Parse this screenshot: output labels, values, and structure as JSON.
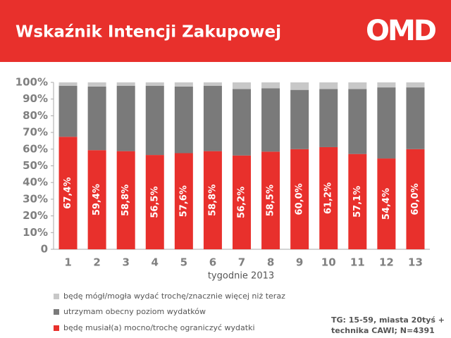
{
  "chart_data": {
    "type": "stacked_bar",
    "title": "Wskaźnik Intencji Zakupowej",
    "logo": "OMD",
    "x_label": "tygodnie 2013",
    "note": [
      "TG: 15-59, miasta 20tyś +",
      "technika CAWI; N=4391"
    ],
    "categories": [
      "1",
      "2",
      "3",
      "4",
      "5",
      "6",
      "7",
      "8",
      "9",
      "10",
      "11",
      "12",
      "13"
    ],
    "series": [
      {
        "name": "będę musiał(a) mocno/trochę ograniczyć wydatki",
        "color": "#e8302c",
        "values": [
          67.4,
          59.4,
          58.8,
          56.5,
          57.6,
          58.8,
          56.2,
          58.5,
          60.0,
          61.2,
          57.1,
          54.4,
          60.0
        ],
        "value_labels": [
          "67,4%",
          "59,4%",
          "58,8%",
          "56,5%",
          "57,6%",
          "58,8%",
          "56,2%",
          "58,5%",
          "60,0%",
          "61,2%",
          "57,1%",
          "54,4%",
          "60,0%"
        ]
      },
      {
        "name": "utrzymam obecny poziom wydatków",
        "color": "#7a7a7a",
        "values": [
          30.6,
          38.1,
          39.2,
          41.5,
          39.9,
          39.2,
          39.8,
          38.0,
          35.5,
          34.8,
          38.9,
          42.6,
          37.0
        ]
      },
      {
        "name": "będę mógł/mogła wydać trochę/znacznie więcej niż teraz",
        "color": "#c8c8c8",
        "values": [
          2.0,
          2.5,
          2.0,
          2.0,
          2.5,
          2.0,
          4.0,
          3.5,
          4.5,
          4.0,
          4.0,
          3.0,
          3.0
        ]
      }
    ],
    "ylim": [
      0,
      100
    ],
    "yticks": [
      0,
      {
        "value": 10,
        "label": "10%"
      },
      {
        "value": 20,
        "label": "20%"
      },
      {
        "value": 30,
        "label": "30%"
      },
      {
        "value": 40,
        "label": "40%"
      },
      {
        "value": 50,
        "label": "50%"
      },
      {
        "value": 60,
        "label": "60%"
      },
      {
        "value": 70,
        "label": "70%"
      },
      {
        "value": 80,
        "label": "80%"
      },
      {
        "value": 90,
        "label": "90%"
      },
      {
        "value": 100,
        "label": "100%"
      }
    ],
    "grid": false
  }
}
